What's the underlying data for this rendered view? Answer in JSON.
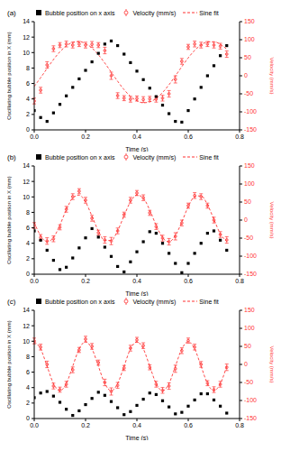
{
  "chart_data": [
    {
      "type": "scatter",
      "title": "(a)",
      "x_label": "Time (s)",
      "y_label": "Oscillating bubble position in X (mm)",
      "y2_label": "Velocity (mm/s)",
      "legend": "top",
      "x": [
        0,
        0.025,
        0.05,
        0.075,
        0.1,
        0.125,
        0.15,
        0.175,
        0.2,
        0.225,
        0.25,
        0.275,
        0.3,
        0.325,
        0.35,
        0.375,
        0.4,
        0.425,
        0.45,
        0.475,
        0.5,
        0.525,
        0.55,
        0.575,
        0.6,
        0.625,
        0.65,
        0.675,
        0.7,
        0.725,
        0.75
      ],
      "xlim": [
        0,
        0.8
      ],
      "xticks": [
        {
          "value": 0,
          "label": "0.0"
        },
        {
          "value": 0.2,
          "label": "0.2"
        },
        {
          "value": 0.4,
          "label": "0.4"
        },
        {
          "value": 0.6,
          "label": "0.6"
        },
        {
          "value": 0.8,
          "label": "0.8"
        }
      ],
      "ylim": [
        0,
        14
      ],
      "yticks": [
        0,
        2,
        4,
        6,
        8,
        10,
        12,
        14
      ],
      "y2lim": [
        -150,
        150
      ],
      "y2ticks": [
        -150,
        -100,
        -50,
        0,
        50,
        100,
        150
      ],
      "series": [
        {
          "name": "Bubble position on x axis",
          "type": "scatter",
          "marker": "square",
          "color": "#000000",
          "values": [
            2.5,
            1.6,
            1.1,
            2.2,
            3.3,
            4.4,
            5.5,
            6.6,
            7.7,
            8.8,
            9.9,
            11.1,
            11.5,
            10.9,
            9.8,
            8.7,
            7.6,
            6.5,
            5.4,
            4.3,
            3.2,
            2.1,
            1.1,
            1.0,
            2.5,
            4.0,
            5.5,
            7.0,
            8.3,
            9.6,
            10.9
          ]
        },
        {
          "name": "Velocity (mm/s)",
          "type": "scatter",
          "marker": "circle",
          "color": "#ff3333",
          "axis": "y2",
          "values": [
            -70,
            -40,
            30,
            75,
            85,
            88,
            85,
            88,
            85,
            87,
            85,
            70,
            0,
            -55,
            -62,
            -65,
            -63,
            -66,
            -64,
            -65,
            -62,
            -50,
            -10,
            40,
            80,
            88,
            85,
            88,
            85,
            82,
            60
          ],
          "error": [
            8,
            8,
            9,
            8,
            7,
            8,
            8,
            7,
            8,
            8,
            7,
            9,
            10,
            8,
            7,
            8,
            7,
            8,
            7,
            8,
            8,
            9,
            10,
            8,
            7,
            8,
            8,
            7,
            8,
            8,
            9
          ]
        },
        {
          "name": "Sine fit",
          "type": "line",
          "line_style": "dashed",
          "color": "#ff3333",
          "axis": "y2",
          "values": [
            -29.5,
            -5.3,
            20.2,
            44.9,
            66.4,
            82.8,
            92.5,
            94.8,
            89.5,
            76.9,
            58.2,
            35.2,
            10,
            -15.2,
            -38.4,
            -57.1,
            -69.5,
            -74.8,
            -72.5,
            -62.7,
            -46.4,
            -24.9,
            -0.3,
            25.3,
            49.7,
            70.2,
            85.6,
            93.7,
            94.3,
            87.4,
            73.7
          ]
        }
      ]
    },
    {
      "type": "scatter",
      "title": "(b)",
      "x_label": "Time (s)",
      "y_label": "Oscillating bubble position in X (mm)",
      "y2_label": "Velocity (mm/s)",
      "legend": "top",
      "x": [
        0,
        0.025,
        0.05,
        0.075,
        0.1,
        0.125,
        0.15,
        0.175,
        0.2,
        0.225,
        0.25,
        0.275,
        0.3,
        0.325,
        0.35,
        0.375,
        0.4,
        0.425,
        0.45,
        0.475,
        0.5,
        0.525,
        0.55,
        0.575,
        0.6,
        0.625,
        0.65,
        0.675,
        0.7,
        0.725,
        0.75
      ],
      "xlim": [
        0,
        0.8
      ],
      "xticks": [
        {
          "value": 0,
          "label": "0.0"
        },
        {
          "value": 0.2,
          "label": "0.2"
        },
        {
          "value": 0.4,
          "label": "0.4"
        },
        {
          "value": 0.6,
          "label": "0.6"
        },
        {
          "value": 0.8,
          "label": "0.8"
        }
      ],
      "ylim": [
        0,
        14
      ],
      "yticks": [
        0,
        2,
        4,
        6,
        8,
        10,
        12,
        14
      ],
      "y2lim": [
        -150,
        150
      ],
      "y2ticks": [
        -150,
        -100,
        -50,
        0,
        50,
        100,
        150
      ],
      "series": [
        {
          "name": "Bubble position on x axis",
          "type": "scatter",
          "marker": "square",
          "color": "#000000",
          "values": [
            5.6,
            4.4,
            3.1,
            1.8,
            0.6,
            0.9,
            2.1,
            3.4,
            4.7,
            5.9,
            4.8,
            3.5,
            2.3,
            1.0,
            0.3,
            1.6,
            2.9,
            4.2,
            5.5,
            5.3,
            4.0,
            2.7,
            1.4,
            0.2,
            1.4,
            2.7,
            4.0,
            5.3,
            5.6,
            4.4,
            3.1
          ]
        },
        {
          "name": "Velocity (mm/s)",
          "type": "scatter",
          "marker": "circle",
          "color": "#ff3333",
          "axis": "y2",
          "values": [
            -15,
            -48,
            -58,
            -52,
            -20,
            30,
            65,
            80,
            55,
            5,
            -35,
            -55,
            -58,
            -30,
            15,
            55,
            75,
            62,
            20,
            -18,
            -50,
            -60,
            -45,
            -8,
            40,
            68,
            65,
            40,
            0,
            -40,
            -55
          ],
          "error": [
            8,
            8,
            9,
            8,
            7,
            8,
            8,
            7,
            8,
            8,
            7,
            9,
            10,
            8,
            7,
            8,
            7,
            8,
            7,
            8,
            8,
            9,
            10,
            8,
            7,
            8,
            8,
            7,
            8,
            8,
            9
          ]
        },
        {
          "name": "Sine fit",
          "type": "line",
          "line_style": "dashed",
          "color": "#ff3333",
          "axis": "y2",
          "values": [
            -6.2,
            -43.5,
            -59.9,
            -48.4,
            -13.9,
            28.7,
            61.2,
            69.4,
            49.9,
            11.0,
            -30.4,
            -56.6,
            -56.4,
            -29.4,
            12.0,
            50.8,
            69.5,
            60.9,
            27.7,
            -14.6,
            -48.8,
            -59.8,
            -43.0,
            -5.2,
            37.3,
            64.9,
            67.4,
            42.8,
            2.1,
            -37.8,
            -59.0
          ]
        }
      ]
    },
    {
      "type": "scatter",
      "title": "(c)",
      "x_label": "Time (s)",
      "y_label": "Oscillating bubble position in X (mm)",
      "y2_label": "Velocity (mm/s)",
      "legend": "top",
      "x": [
        0,
        0.025,
        0.05,
        0.075,
        0.1,
        0.125,
        0.15,
        0.175,
        0.2,
        0.225,
        0.25,
        0.275,
        0.3,
        0.325,
        0.35,
        0.375,
        0.4,
        0.425,
        0.45,
        0.475,
        0.5,
        0.525,
        0.55,
        0.575,
        0.6,
        0.625,
        0.65,
        0.675,
        0.7,
        0.725,
        0.75
      ],
      "xlim": [
        0,
        0.8
      ],
      "xticks": [
        {
          "value": 0,
          "label": "0.0"
        },
        {
          "value": 0.2,
          "label": "0.2"
        },
        {
          "value": 0.4,
          "label": "0.4"
        },
        {
          "value": 0.6,
          "label": "0.6"
        },
        {
          "value": 0.8,
          "label": "0.8"
        }
      ],
      "ylim": [
        0,
        14
      ],
      "yticks": [
        0,
        2,
        4,
        6,
        8,
        10,
        12,
        14
      ],
      "y2lim": [
        -150,
        150
      ],
      "y2ticks": [
        -150,
        -100,
        -50,
        0,
        50,
        100,
        150
      ],
      "series": [
        {
          "name": "Bubble position on x axis",
          "type": "scatter",
          "marker": "square",
          "color": "#000000",
          "values": [
            2.7,
            3.3,
            3.5,
            2.9,
            2.1,
            1.2,
            0.4,
            1.0,
            1.8,
            2.6,
            3.4,
            3.0,
            2.2,
            1.4,
            0.5,
            0.9,
            1.7,
            2.5,
            3.3,
            3.1,
            2.3,
            1.5,
            0.6,
            0.8,
            1.6,
            2.4,
            3.2,
            3.2,
            2.4,
            1.6,
            0.7
          ]
        },
        {
          "name": "Velocity (mm/s)",
          "type": "scatter",
          "marker": "circle",
          "color": "#ff3333",
          "axis": "y2",
          "values": [
            65,
            48,
            0,
            -60,
            -70,
            -55,
            -15,
            40,
            70,
            50,
            5,
            -50,
            -75,
            -58,
            -10,
            45,
            68,
            52,
            -8,
            -55,
            -72,
            -60,
            -12,
            38,
            66,
            48,
            0,
            -52,
            -70,
            -55,
            -8
          ],
          "error": [
            8,
            8,
            9,
            8,
            7,
            8,
            8,
            7,
            8,
            8,
            7,
            9,
            10,
            8,
            7,
            8,
            7,
            8,
            7,
            8,
            8,
            9,
            10,
            8,
            7,
            8,
            8,
            7,
            8,
            8,
            9
          ]
        },
        {
          "name": "Sine fit",
          "type": "line",
          "line_style": "dashed",
          "color": "#ff3333",
          "axis": "y2",
          "values": [
            63,
            43.1,
            -5,
            -53.1,
            -73,
            -53.1,
            -5,
            43.1,
            63,
            43.1,
            -5,
            -53.1,
            -73,
            -53.1,
            -5,
            43.1,
            63,
            43.1,
            -5,
            -53.1,
            -73,
            -53.1,
            -5,
            43.1,
            63,
            43.1,
            -5,
            -53.1,
            -73,
            -53.1,
            -5
          ]
        }
      ]
    }
  ]
}
